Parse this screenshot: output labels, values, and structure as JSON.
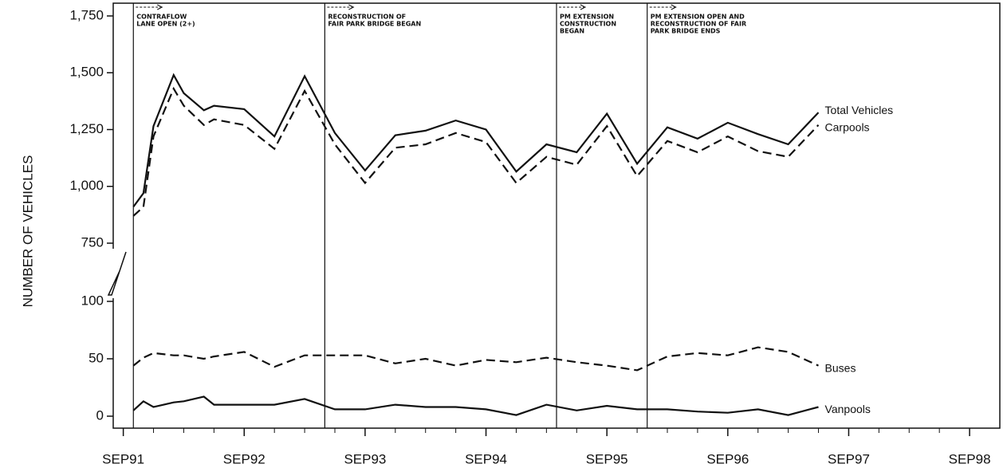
{
  "chart_data": {
    "type": "line",
    "ylabel": "NUMBER OF VEHICLES",
    "xlim": [
      "1991-08",
      "1998-12"
    ],
    "xticks": [
      {
        "value": "1991-09",
        "label": "SEP91"
      },
      {
        "value": "1992-09",
        "label": "SEP92"
      },
      {
        "value": "1993-09",
        "label": "SEP93"
      },
      {
        "value": "1994-09",
        "label": "SEP94"
      },
      {
        "value": "1995-09",
        "label": "SEP95"
      },
      {
        "value": "1996-09",
        "label": "SEP96"
      },
      {
        "value": "1997-09",
        "label": "SEP97"
      },
      {
        "value": "1998-09",
        "label": "SEP98"
      }
    ],
    "x": [
      "1991-10",
      "1991-11",
      "1991-12",
      "1992-02",
      "1992-03",
      "1992-05",
      "1992-06",
      "1992-09",
      "1992-12",
      "1993-03",
      "1993-06",
      "1993-09",
      "1993-12",
      "1994-03",
      "1994-06",
      "1994-09",
      "1994-12",
      "1995-03",
      "1995-06",
      "1995-09",
      "1995-12",
      "1996-03",
      "1996-06",
      "1996-09",
      "1996-12",
      "1997-03",
      "1997-06"
    ],
    "panels": [
      {
        "ylim": [
          750,
          1750
        ],
        "yticks": [
          750,
          {
            "value": 1000,
            "label": "1,000"
          },
          {
            "value": 1250,
            "label": "1,250"
          },
          {
            "value": 1500,
            "label": "1,500"
          },
          {
            "value": 1750,
            "label": "1,750"
          }
        ],
        "series": [
          {
            "name": "Total Vehicles",
            "color": "#111111",
            "dashed": false,
            "values": [
              910,
              970,
              1265,
              1490,
              1410,
              1335,
              1355,
              1340,
              1220,
              1485,
              1235,
              1070,
              1225,
              1245,
              1290,
              1250,
              1065,
              1185,
              1150,
              1320,
              1100,
              1260,
              1210,
              1280,
              1230,
              1185,
              1325
            ]
          },
          {
            "name": "Carpools",
            "color": "#111111",
            "dashed": true,
            "values": [
              870,
              910,
              1220,
              1430,
              1355,
              1270,
              1295,
              1270,
              1165,
              1420,
              1185,
              1015,
              1170,
              1185,
              1235,
              1195,
              1015,
              1130,
              1095,
              1265,
              1045,
              1200,
              1150,
              1220,
              1155,
              1130,
              1270
            ]
          }
        ]
      },
      {
        "ylim": [
          0,
          100
        ],
        "yticks": [
          0,
          50,
          100
        ],
        "series": [
          {
            "name": "Buses",
            "color": "#111111",
            "dashed": true,
            "values": [
              44,
              51,
              55,
              53,
              53,
              50,
              52,
              56,
              43,
              53,
              53,
              53,
              46,
              50,
              44,
              49,
              47,
              51,
              47,
              44,
              40,
              52,
              55,
              53,
              60,
              56,
              44
            ]
          },
          {
            "name": "Vanpools",
            "color": "#111111",
            "dashed": false,
            "values": [
              5,
              13,
              8,
              12,
              13,
              17,
              10,
              10,
              10,
              15,
              6,
              6,
              10,
              8,
              8,
              6,
              1,
              10,
              5,
              9,
              6,
              6,
              4,
              3,
              6,
              1,
              8
            ]
          }
        ]
      }
    ],
    "annotations": [
      {
        "x": "1991-10",
        "lines": [
          "CONTRAFLOW",
          "LANE OPEN (2+)"
        ]
      },
      {
        "x": "1993-05",
        "lines": [
          "RECONSTRUCTION OF",
          "FAIR PARK BRIDGE BEGAN"
        ]
      },
      {
        "x": "1995-04",
        "lines": [
          "PM EXTENSION",
          "CONSTRUCTION",
          "BEGAN"
        ]
      },
      {
        "x": "1996-01",
        "lines": [
          "PM EXTENSION OPEN AND",
          "RECONSTRUCTION OF FAIR",
          "PARK BRIDGE ENDS"
        ]
      }
    ]
  }
}
